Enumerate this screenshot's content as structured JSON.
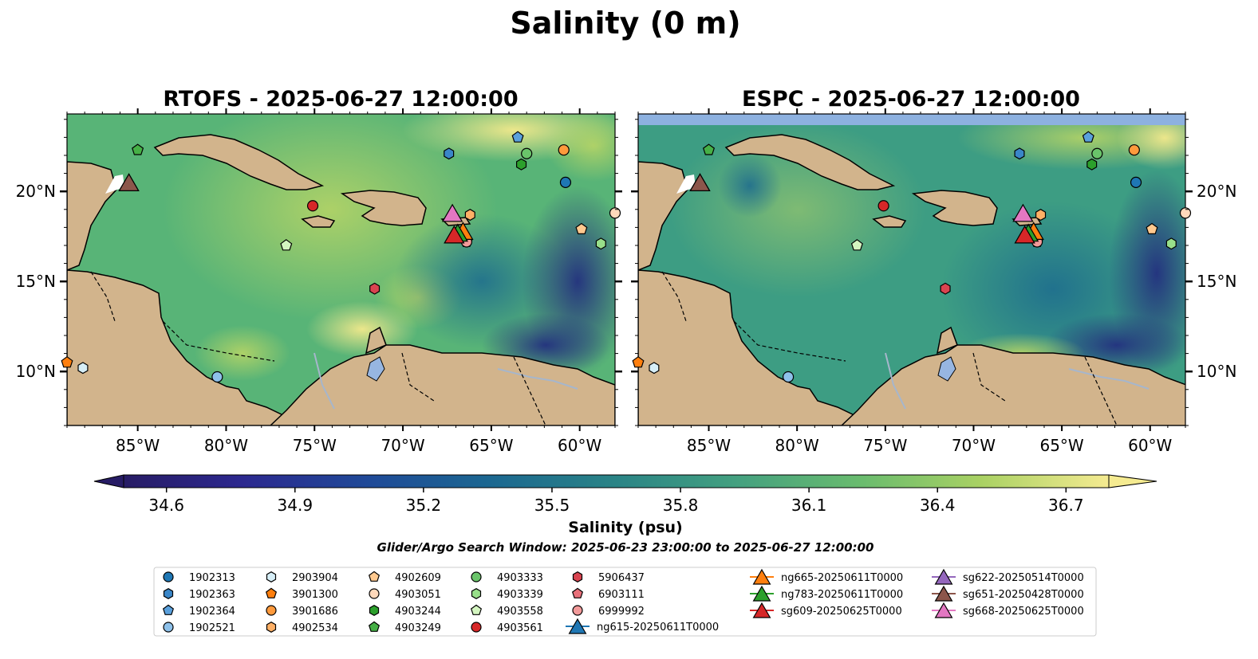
{
  "suptitle": "Salinity (0 m)",
  "search_window": "Glider/Argo Search Window: 2025-06-23 23:00:00 to 2025-06-27 12:00:00",
  "chart_data": [
    {
      "type": "heatmap",
      "title": "RTOFS - 2025-06-27 12:00:00",
      "xlim": [
        -89,
        -58
      ],
      "ylim": [
        7,
        24.3
      ],
      "x_ticks": [
        "85°W",
        "80°W",
        "75°W",
        "70°W",
        "65°W",
        "60°W"
      ],
      "y_ticks": [
        "20°N",
        "15°N",
        "10°N"
      ],
      "y_tick_side": "left"
    },
    {
      "type": "heatmap",
      "title": "ESPC - 2025-06-27 12:00:00",
      "xlim": [
        -89,
        -58
      ],
      "ylim": [
        7,
        24.3
      ],
      "x_ticks": [
        "85°W",
        "80°W",
        "75°W",
        "70°W",
        "65°W",
        "60°W"
      ],
      "y_ticks": [
        "20°N",
        "15°N",
        "10°N"
      ],
      "y_tick_side": "right"
    }
  ],
  "colorbar": {
    "label": "Salinity (psu)",
    "min": 34.5,
    "max": 36.8,
    "ticks": [
      "34.6",
      "34.9",
      "35.2",
      "35.5",
      "35.8",
      "36.1",
      "36.4",
      "36.7"
    ],
    "colormap": [
      "#271c65",
      "#2c288f",
      "#1f4a98",
      "#1b6791",
      "#2a8486",
      "#43a080",
      "#6abc6e",
      "#a9d163",
      "#f5eb91"
    ]
  },
  "colors": {
    "land": "#d2b48c",
    "lakes": "#97b6e1",
    "rivers": "#a6b6cc"
  },
  "legend": {
    "floats": [
      {
        "label": "1902313",
        "marker": "circle",
        "color": "#1f77b4",
        "lon": -60.8,
        "lat": 20.5
      },
      {
        "label": "1902363",
        "marker": "hexagon",
        "color": "#3a86c8",
        "lon": -67.4,
        "lat": 22.1
      },
      {
        "label": "1902364",
        "marker": "pentagon",
        "color": "#5aa0dc",
        "lon": -63.5,
        "lat": 23.0
      },
      {
        "label": "1902521",
        "marker": "circle",
        "color": "#8ec1ea",
        "lon": -80.5,
        "lat": 9.7
      },
      {
        "label": "2903904",
        "marker": "hexagon",
        "color": "#d6eef7",
        "lon": -88.1,
        "lat": 10.2
      },
      {
        "label": "3901300",
        "marker": "pentagon",
        "color": "#ff7f0e",
        "lon": -89.0,
        "lat": 10.5
      },
      {
        "label": "3901686",
        "marker": "circle",
        "color": "#ff9a3c",
        "lon": -60.9,
        "lat": 22.3
      },
      {
        "label": "4902534",
        "marker": "hexagon",
        "color": "#ffb066",
        "lon": -66.2,
        "lat": 18.7
      },
      {
        "label": "4902609",
        "marker": "pentagon",
        "color": "#ffc98f",
        "lon": -59.9,
        "lat": 17.9
      },
      {
        "label": "4903051",
        "marker": "circle",
        "color": "#ffd9bb",
        "lon": -58.0,
        "lat": 18.8
      },
      {
        "label": "4903244",
        "marker": "hexagon",
        "color": "#2ca02c",
        "lon": -63.3,
        "lat": 21.5
      },
      {
        "label": "4903249",
        "marker": "pentagon",
        "color": "#46b046",
        "lon": -85.0,
        "lat": 22.3
      },
      {
        "label": "4903333",
        "marker": "circle",
        "color": "#6ac46a",
        "lon": -63.0,
        "lat": 22.1
      },
      {
        "label": "4903339",
        "marker": "hexagon",
        "color": "#98df8a",
        "lon": -58.8,
        "lat": 17.1
      },
      {
        "label": "4903558",
        "marker": "pentagon",
        "color": "#d4f5c0",
        "lon": -76.6,
        "lat": 17.0
      },
      {
        "label": "4903561",
        "marker": "circle",
        "color": "#d62728",
        "lon": -75.1,
        "lat": 19.2
      },
      {
        "label": "5906437",
        "marker": "hexagon",
        "color": "#d94450",
        "lon": -71.6,
        "lat": 14.6
      },
      {
        "label": "6903111",
        "marker": "pentagon",
        "color": "#e8707a",
        "lon": -66.4,
        "lat": 17.2
      },
      {
        "label": "6999992",
        "marker": "circle",
        "color": "#f29a9a",
        "lon": -66.4,
        "lat": 17.2
      }
    ],
    "gliders": [
      {
        "label": "ng615-20250611T0000",
        "color": "#1f77b4",
        "lon": null,
        "lat": null
      },
      {
        "label": "ng665-20250611T0000",
        "color": "#ff7f0e",
        "lon": -66.6,
        "lat": 17.8
      },
      {
        "label": "ng783-20250611T0000",
        "color": "#2ca02c",
        "lon": -66.9,
        "lat": 17.7
      },
      {
        "label": "sg609-20250625T0000",
        "color": "#d62728",
        "lon": -67.1,
        "lat": 17.6
      },
      {
        "label": "sg622-20250514T0000",
        "color": "#9467bd",
        "lon": -85.5,
        "lat": 20.5
      },
      {
        "label": "sg651-20250428T0000",
        "color": "#8c564b",
        "lon": -85.5,
        "lat": 20.5
      },
      {
        "label": "sg668-20250625T0000",
        "color": "#e377c2",
        "lon": -67.2,
        "lat": 18.8
      }
    ]
  }
}
